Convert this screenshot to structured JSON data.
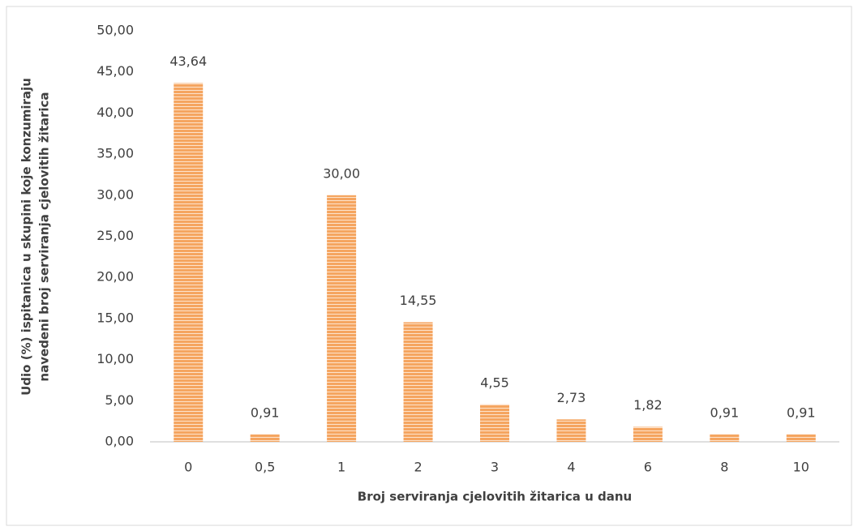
{
  "chart_data": {
    "type": "bar",
    "x_label": "Broj serviranja cjelovitih žitarica u danu",
    "y_label": [
      "Udio (%) ispitanica u skupini koje konzumiraju",
      "navedeni broj serviranja cjelovitih žitarica"
    ],
    "categories": [
      "0",
      "0,5",
      "1",
      "2",
      "3",
      "4",
      "6",
      "8",
      "10"
    ],
    "values": [
      43.64,
      0.91,
      30.0,
      14.55,
      4.55,
      2.73,
      1.82,
      0.91,
      0.91
    ],
    "value_labels": [
      "43,64",
      "0,91",
      "30,00",
      "14,55",
      "4,55",
      "2,73",
      "1,82",
      "0,91",
      "0,91"
    ],
    "color": "#f5a560",
    "ylim": [
      0,
      50
    ],
    "yticks": [
      {
        "value": 0,
        "label": "0,00"
      },
      {
        "value": 5,
        "label": "5,00"
      },
      {
        "value": 10,
        "label": "10,00"
      },
      {
        "value": 15,
        "label": "15,00"
      },
      {
        "value": 20,
        "label": "20,00"
      },
      {
        "value": 25,
        "label": "25,00"
      },
      {
        "value": 30,
        "label": "30,00"
      },
      {
        "value": 35,
        "label": "35,00"
      },
      {
        "value": 40,
        "label": "40,00"
      },
      {
        "value": 45,
        "label": "45,00"
      },
      {
        "value": 50,
        "label": "50,00"
      }
    ],
    "grid": false
  }
}
